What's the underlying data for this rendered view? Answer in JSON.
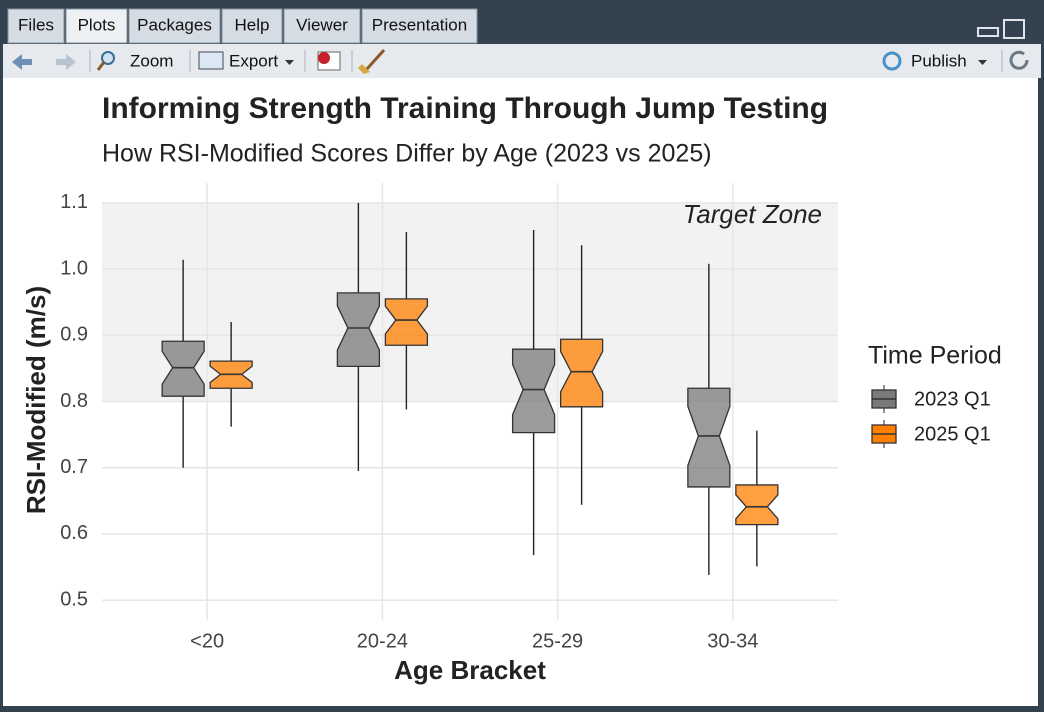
{
  "tabs": [
    "Files",
    "Plots",
    "Packages",
    "Help",
    "Viewer",
    "Presentation"
  ],
  "toolbar": {
    "zoom": "Zoom",
    "export": "Export",
    "publish": "Publish"
  },
  "chart_data": {
    "type": "boxplot",
    "title": "Informing Strength Training Through Jump Testing",
    "subtitle": "How RSI-Modified Scores Differ by Age (2023 vs 2025)",
    "x_label": "Age Bracket",
    "y_label": "RSI-Modified (m/s)",
    "categories": [
      "<20",
      "20-24",
      "25-29",
      "30-34"
    ],
    "ylim": [
      0.47,
      1.13
    ],
    "yticks": [
      0.5,
      0.6,
      0.7,
      0.8,
      0.9,
      {
        "value": 1,
        "label": "1.0"
      },
      1.1
    ],
    "grid": true,
    "notch": true,
    "legend_title": "Time Period",
    "legend_position": "right",
    "annotation": {
      "label": "Target Zone",
      "ymin": 0.8,
      "ymax": 1.1
    },
    "series": [
      {
        "name": "2023 Q1",
        "color": "#7a7a7a",
        "whisker_low": [
          0.7,
          0.695,
          0.568,
          0.538
        ],
        "q1": [
          0.808,
          0.853,
          0.753,
          0.671
        ],
        "median": [
          0.851,
          0.911,
          0.818,
          0.748
        ],
        "q3": [
          0.891,
          0.964,
          0.879,
          0.82
        ],
        "whisker_high": [
          1.014,
          1.1,
          1.059,
          1.008
        ]
      },
      {
        "name": "2025 Q1",
        "color": "#ff7f00",
        "whisker_low": [
          0.762,
          0.788,
          0.644,
          0.551
        ],
        "q1": [
          0.82,
          0.885,
          0.792,
          0.614
        ],
        "median": [
          0.841,
          0.923,
          0.845,
          0.641
        ],
        "q3": [
          0.861,
          0.955,
          0.894,
          0.674
        ],
        "whisker_high": [
          0.92,
          1.056,
          1.036,
          0.756
        ]
      }
    ]
  }
}
